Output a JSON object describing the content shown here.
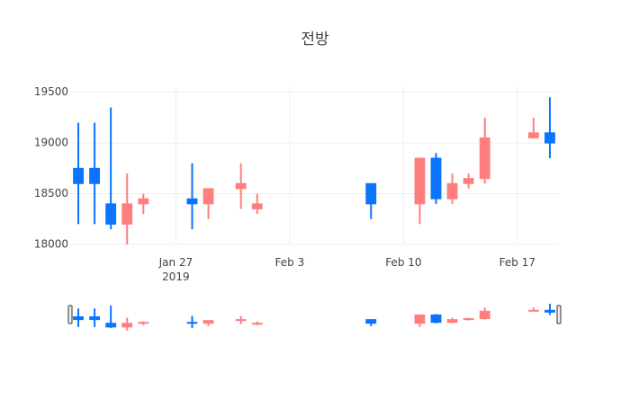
{
  "chart_data": {
    "type": "candlestick",
    "title": "전방",
    "x": [
      "2019-01-21",
      "2019-01-22",
      "2019-01-23",
      "2019-01-24",
      "2019-01-25",
      "2019-01-28",
      "2019-01-29",
      "2019-01-31",
      "2019-02-01",
      "2019-02-08",
      "2019-02-11",
      "2019-02-12",
      "2019-02-13",
      "2019-02-14",
      "2019-02-15",
      "2019-02-18",
      "2019-02-19"
    ],
    "open": [
      18750,
      18750,
      18400,
      18200,
      18400,
      18450,
      18400,
      18550,
      18350,
      18600,
      18400,
      18850,
      18450,
      18600,
      18650,
      19050,
      19100
    ],
    "high": [
      19200,
      19200,
      19350,
      18700,
      18500,
      18800,
      18550,
      18800,
      18500,
      18600,
      18850,
      18900,
      18700,
      18700,
      19250,
      19250,
      19450
    ],
    "low": [
      18200,
      18200,
      18150,
      18000,
      18300,
      18150,
      18250,
      18350,
      18300,
      18250,
      18200,
      18400,
      18400,
      18550,
      18600,
      19050,
      18850
    ],
    "close": [
      18600,
      18600,
      18200,
      18400,
      18450,
      18400,
      18550,
      18600,
      18400,
      18400,
      18850,
      18450,
      18600,
      18650,
      19050,
      19100,
      19000
    ],
    "increasing_color": "#ff7f7f",
    "decreasing_color": "#0a74ff",
    "xlim": [
      "2019-01-20T12",
      "2019-02-19T12"
    ],
    "xticks": [
      {
        "value": "2019-01-27",
        "label": "Jan 27\n2019"
      },
      {
        "value": "2019-02-03",
        "label": "Feb 3"
      },
      {
        "value": "2019-02-10",
        "label": "Feb 10"
      },
      {
        "value": "2019-02-17",
        "label": "Feb 17"
      }
    ],
    "ylim": [
      18000,
      19550
    ],
    "yticks": [
      18000,
      18500,
      19000,
      19500
    ],
    "grid": true,
    "rangeslider": true
  }
}
